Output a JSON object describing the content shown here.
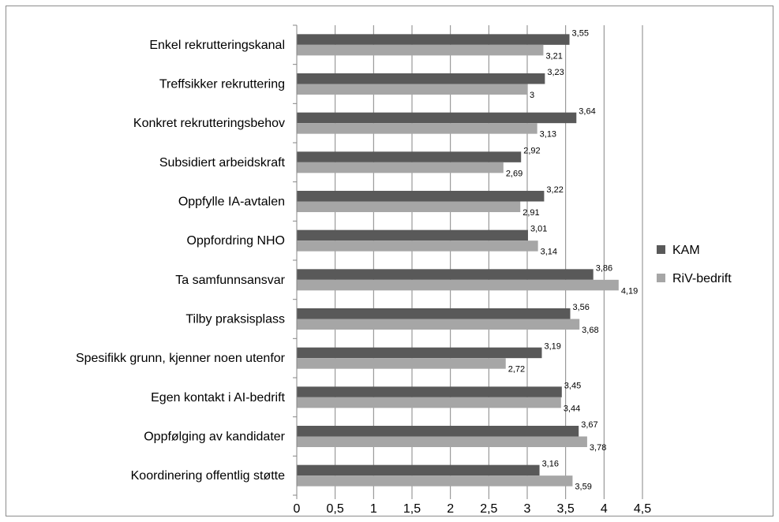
{
  "chart_data": {
    "type": "bar",
    "orientation": "horizontal",
    "categories": [
      "Enkel rekrutteringskanal",
      "Treffsikker rekruttering",
      "Konkret rekrutteringsbehov",
      "Subsidiert arbeidskraft",
      "Oppfylle IA-avtalen",
      "Oppfordring NHO",
      "Ta samfunnsansvar",
      "Tilby praksisplass",
      "Spesifikk grunn, kjenner noen utenfor",
      "Egen kontakt i AI-bedrift",
      "Oppfølging av kandidater",
      "Koordinering offentlig støtte"
    ],
    "series": [
      {
        "name": "KAM",
        "color": "#595959",
        "values": [
          3.55,
          3.23,
          3.64,
          2.92,
          3.22,
          3.01,
          3.86,
          3.56,
          3.19,
          3.45,
          3.67,
          3.16
        ],
        "labels": [
          "3,55",
          "3,23",
          "3,64",
          "2,92",
          "3,22",
          "3,01",
          "3,86",
          "3,56",
          "3,19",
          "3,45",
          "3,67",
          "3,16"
        ]
      },
      {
        "name": "RiV-bedrift",
        "color": "#a6a6a6",
        "values": [
          3.21,
          3.0,
          3.13,
          2.69,
          2.91,
          3.14,
          4.19,
          3.68,
          2.72,
          3.44,
          3.78,
          3.59
        ],
        "labels": [
          "3,21",
          "3",
          "3,13",
          "2,69",
          "2,91",
          "3,14",
          "4,19",
          "3,68",
          "2,72",
          "3,44",
          "3,78",
          "3,59"
        ]
      }
    ],
    "xlim": [
      0,
      4.5
    ],
    "x_ticks": [
      0,
      0.5,
      1,
      1.5,
      2,
      2.5,
      3,
      3.5,
      4,
      4.5
    ],
    "x_tick_labels": [
      "0",
      "0,5",
      "1",
      "1,5",
      "2",
      "2,5",
      "3",
      "3,5",
      "4",
      "4,5"
    ],
    "grid": "vertical major gridlines",
    "legend": "right",
    "title": "",
    "xlabel": "",
    "ylabel": ""
  }
}
